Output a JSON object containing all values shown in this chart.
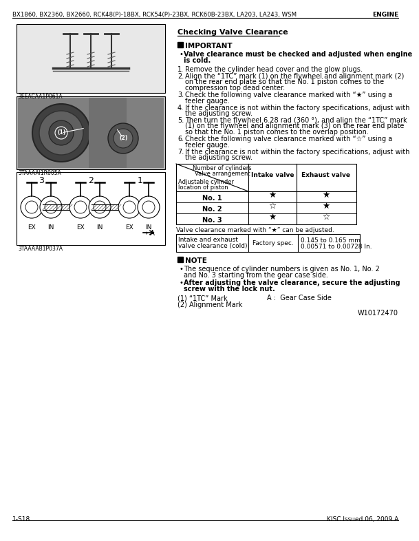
{
  "header_left": "BX1860, BX2360, BX2660, RCK48(P)-18BX, RCK54(P)-23BX, RCK60B-23BX, LA203, LA243, WSM",
  "header_right": "ENGINE",
  "footer_left": "1-S18",
  "footer_right": "KISC Issued 06, 2009 A",
  "watermark": "W10172470",
  "img1_label": "3EEACAA1P061A",
  "img2_label": "3TAAAAI1R005A",
  "img3_label": "3TAAAAB1P037A",
  "section_title": "Checking Valve Clearance",
  "important_label": "IMPORTANT",
  "imp_bullet_line1": "Valve clearance must be checked and adjusted when engine",
  "imp_bullet_line2": "is cold.",
  "steps": [
    "Remove the cylinder head cover and the glow plugs.",
    "Align the “1TC” mark (1) on the flywheel and alignment mark (2)\non the rear end plate so that the No. 1 piston comes to the\ncompression top dead center.",
    "Check the following valve clearance marked with “★” using a\nfeeler gauge.",
    "If the clearance is not within the factory specifications, adjust with\nthe adjusting screw.",
    "Then turn the flywheel 6.28 rad (360 °), and align the “1TC” mark\n(1) on the flywheel and alignment mark (3) on the rear end plate\nso that the No. 1 piston comes to the overlap position.",
    "Check the following valve clearance marked with “☆” using a\nfeeler gauge.",
    "If the clearance is not within the factory specifications, adjust with\nthe adjusting screw."
  ],
  "table_rows": [
    [
      "No. 1",
      "★",
      "★"
    ],
    [
      "No. 2",
      "☆",
      "★"
    ],
    [
      "No. 3",
      "★",
      "☆"
    ]
  ],
  "table_note": "Valve clearance marked with “★” can be adjusted.",
  "note_bullet1_line1": "The sequence of cylinder numbers is given as No. 1, No. 2",
  "note_bullet1_line2": "and No. 3 starting from the gear case side.",
  "note_bullet2_line1": "After adjusting the valve clearance, secure the adjusting",
  "note_bullet2_line2": "screw with the lock nut.",
  "footnote1": "(1) “1TC” Mark",
  "footnote2": "(2) Alignment Mark",
  "footnoteA": "A :  Gear Case Side"
}
